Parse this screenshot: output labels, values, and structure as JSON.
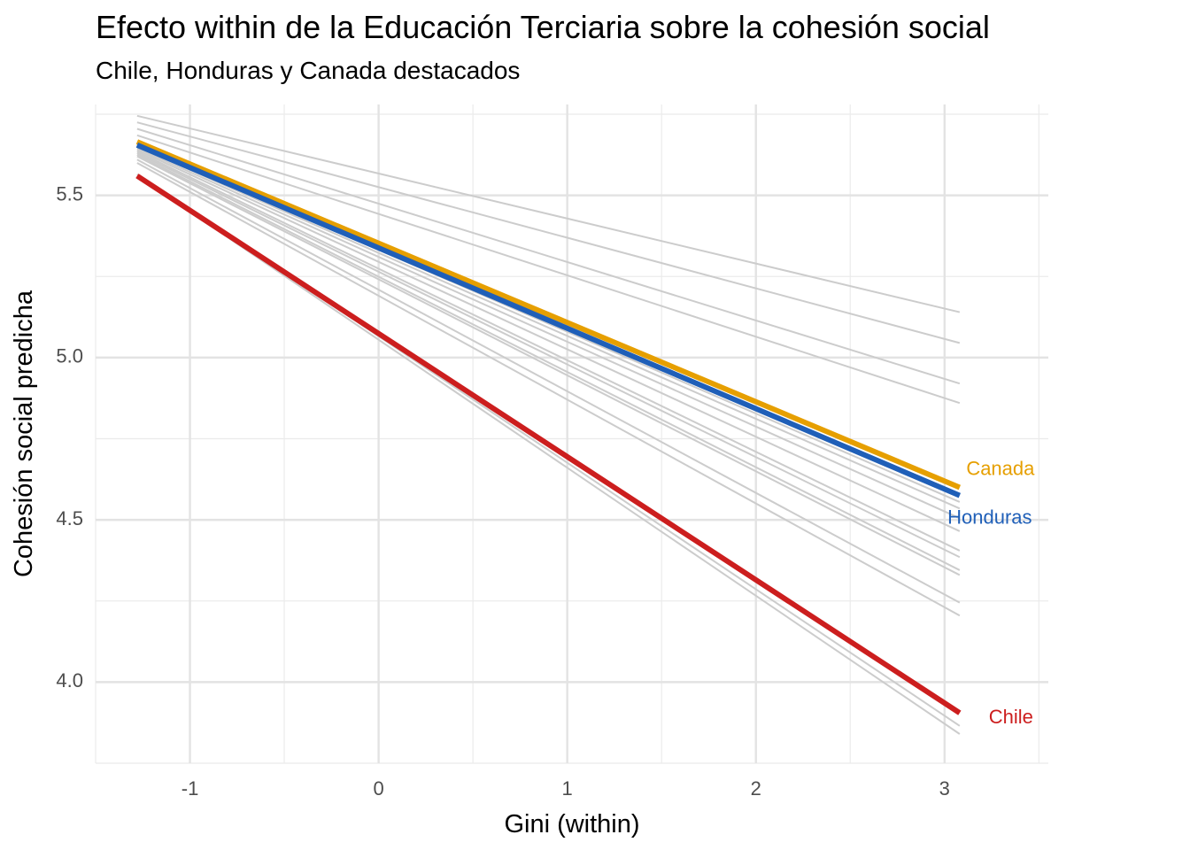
{
  "chart_data": {
    "type": "line",
    "title": "Efecto within de la Educación Terciaria sobre la cohesión social",
    "subtitle": "Chile, Honduras y Canada destacados",
    "xlabel": "Gini (within)",
    "ylabel": "Cohesión social predicha",
    "xlim": [
      -1.5,
      3.55
    ],
    "ylim": [
      3.75,
      5.78
    ],
    "x_ticks": [
      -1,
      0,
      1,
      2,
      3
    ],
    "y_ticks": [
      4.0,
      4.5,
      5.0,
      5.5
    ],
    "x_tick_labels": [
      "-1",
      "0",
      "1",
      "2",
      "3"
    ],
    "y_tick_labels": [
      "4.0",
      "4.5",
      "5.0",
      "5.5"
    ],
    "grid": true,
    "background_series_color": "#cccccc",
    "background_series": [
      {
        "x": [
          -1.28,
          3.08
        ],
        "y": [
          5.745,
          5.14
        ]
      },
      {
        "x": [
          -1.28,
          3.08
        ],
        "y": [
          5.725,
          5.045
        ]
      },
      {
        "x": [
          -1.28,
          3.08
        ],
        "y": [
          5.705,
          4.92
        ]
      },
      {
        "x": [
          -1.28,
          3.08
        ],
        "y": [
          5.685,
          4.86
        ]
      },
      {
        "x": [
          -1.28,
          3.08
        ],
        "y": [
          5.665,
          4.605
        ]
      },
      {
        "x": [
          -1.28,
          3.08
        ],
        "y": [
          5.655,
          4.555
        ]
      },
      {
        "x": [
          -1.28,
          3.08
        ],
        "y": [
          5.65,
          4.535
        ]
      },
      {
        "x": [
          -1.28,
          3.08
        ],
        "y": [
          5.645,
          4.505
        ]
      },
      {
        "x": [
          -1.28,
          3.08
        ],
        "y": [
          5.64,
          4.465
        ]
      },
      {
        "x": [
          -1.28,
          3.08
        ],
        "y": [
          5.635,
          4.405
        ]
      },
      {
        "x": [
          -1.28,
          3.08
        ],
        "y": [
          5.63,
          4.385
        ]
      },
      {
        "x": [
          -1.28,
          3.08
        ],
        "y": [
          5.625,
          4.345
        ]
      },
      {
        "x": [
          -1.28,
          3.08
        ],
        "y": [
          5.62,
          4.33
        ]
      },
      {
        "x": [
          -1.28,
          3.08
        ],
        "y": [
          5.61,
          4.245
        ]
      },
      {
        "x": [
          -1.28,
          3.08
        ],
        "y": [
          5.6,
          4.205
        ]
      },
      {
        "x": [
          -1.28,
          3.08
        ],
        "y": [
          5.565,
          3.865
        ]
      },
      {
        "x": [
          -1.28,
          3.08
        ],
        "y": [
          5.56,
          3.84
        ]
      }
    ],
    "series": [
      {
        "name": "Canada",
        "color": "#E69F00",
        "x": [
          -1.28,
          3.08
        ],
        "y": [
          5.665,
          4.6
        ]
      },
      {
        "name": "Honduras",
        "color": "#1F5FB8",
        "x": [
          -1.28,
          3.08
        ],
        "y": [
          5.655,
          4.575
        ]
      },
      {
        "name": "Chile",
        "color": "#CC1E1E",
        "x": [
          -1.28,
          3.08
        ],
        "y": [
          5.56,
          3.905
        ]
      }
    ]
  }
}
